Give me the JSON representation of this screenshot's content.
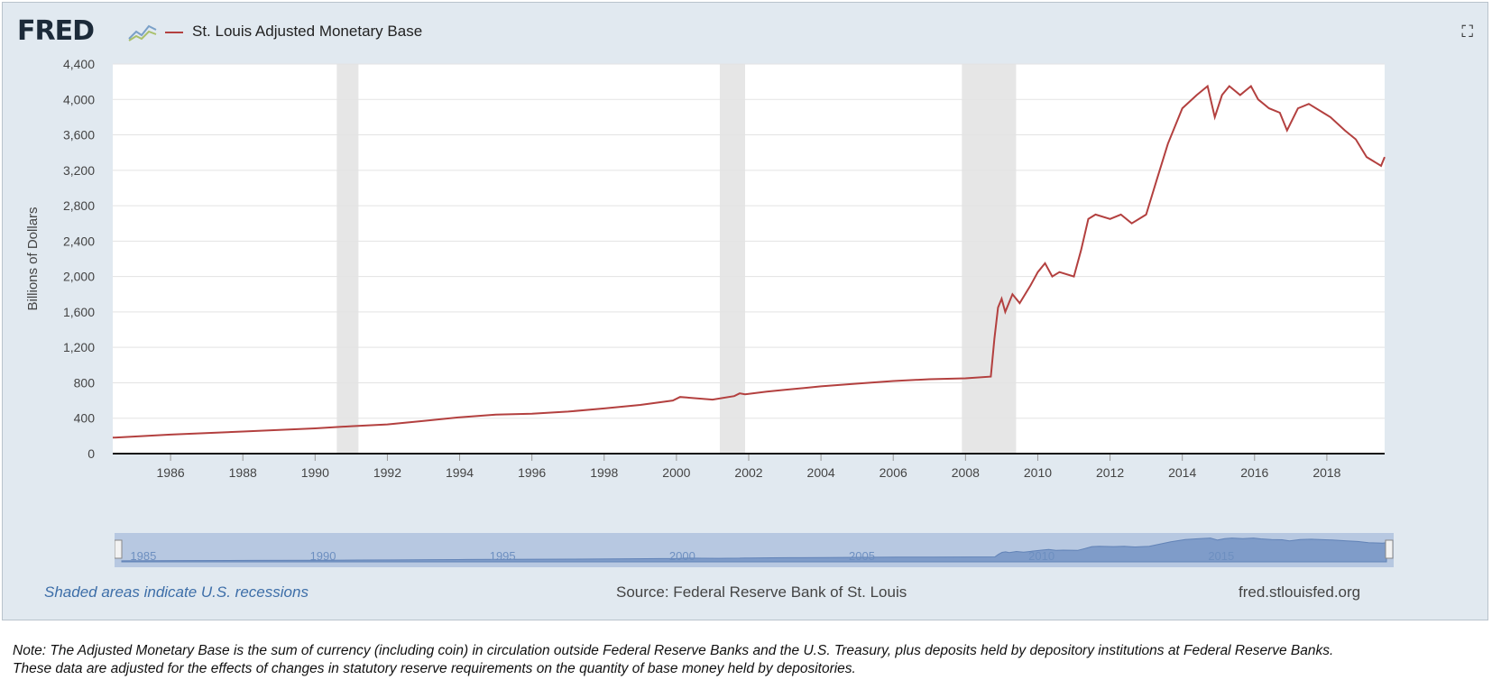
{
  "header": {
    "logo_text": "FRED",
    "logo_icon": "chart-line-icon",
    "legend_label": "St. Louis Adjusted Monetary Base",
    "fullscreen_icon": "fullscreen-icon"
  },
  "footer": {
    "recession_note": "Shaded areas indicate U.S. recessions",
    "source": "Source: Federal Reserve Bank of St. Louis",
    "site": "fred.stlouisfed.org"
  },
  "note": {
    "line1": "Note: The Adjusted Monetary Base is the sum of currency (including coin) in circulation outside Federal Reserve Banks and the U.S. Treasury, plus deposits held by depository institutions at Federal Reserve Banks.",
    "line2": "These data are adjusted for the effects of changes in statutory reserve requirements on the quantity of base money held by depositories."
  },
  "colors": {
    "series": "#b3403f",
    "recession": "#e6e6e6",
    "background": "#e1e9f0",
    "navigator": "#b7c8e1",
    "navigator_fill": "#7f9cc9"
  },
  "chart_data": {
    "type": "line",
    "title": "",
    "xlabel": "",
    "ylabel": "Billions of Dollars",
    "xlim": [
      1984.4,
      2019.6
    ],
    "ylim": [
      0,
      4400
    ],
    "y_ticks": [
      "0",
      "400",
      "800",
      "1,200",
      "1,600",
      "2,000",
      "2,400",
      "2,800",
      "3,200",
      "3,600",
      "4,000",
      "4,400"
    ],
    "x_ticks": [
      "1986",
      "1988",
      "1990",
      "1992",
      "1994",
      "1996",
      "1998",
      "2000",
      "2002",
      "2004",
      "2006",
      "2008",
      "2010",
      "2012",
      "2014",
      "2016",
      "2018"
    ],
    "grid": true,
    "recessions": [
      [
        1990.6,
        1991.2
      ],
      [
        2001.2,
        2001.9
      ],
      [
        2007.9,
        2009.4
      ]
    ],
    "navigator_ticks": [
      "1985",
      "1990",
      "1995",
      "2000",
      "2005",
      "2010",
      "2015"
    ],
    "series": [
      {
        "name": "St. Louis Adjusted Monetary Base",
        "x": [
          1984.4,
          1986.0,
          1988.0,
          1990.0,
          1991.0,
          1992.0,
          1993.0,
          1994.0,
          1995.0,
          1996.0,
          1997.0,
          1998.0,
          1999.0,
          1999.9,
          2000.1,
          2001.0,
          2001.6,
          2001.75,
          2001.9,
          2002.5,
          2003.0,
          2004.0,
          2005.0,
          2006.0,
          2007.0,
          2008.0,
          2008.7,
          2008.8,
          2008.9,
          2009.0,
          2009.1,
          2009.3,
          2009.5,
          2009.8,
          2010.0,
          2010.2,
          2010.4,
          2010.6,
          2011.0,
          2011.2,
          2011.4,
          2011.6,
          2012.0,
          2012.3,
          2012.6,
          2013.0,
          2013.3,
          2013.6,
          2014.0,
          2014.4,
          2014.7,
          2014.9,
          2015.1,
          2015.3,
          2015.6,
          2015.9,
          2016.1,
          2016.4,
          2016.7,
          2016.9,
          2017.2,
          2017.5,
          2017.9,
          2018.1,
          2018.5,
          2018.8,
          2019.1,
          2019.3,
          2019.5,
          2019.6
        ],
        "y": [
          180,
          215,
          250,
          285,
          310,
          330,
          370,
          410,
          440,
          450,
          475,
          510,
          550,
          600,
          640,
          610,
          650,
          680,
          670,
          700,
          720,
          760,
          790,
          820,
          840,
          850,
          870,
          1300,
          1650,
          1750,
          1600,
          1800,
          1700,
          1900,
          2050,
          2150,
          2000,
          2050,
          2000,
          2300,
          2650,
          2700,
          2650,
          2700,
          2600,
          2700,
          3100,
          3500,
          3900,
          4050,
          4150,
          3800,
          4050,
          4150,
          4050,
          4150,
          4000,
          3900,
          3850,
          3650,
          3900,
          3950,
          3850,
          3800,
          3650,
          3550,
          3350,
          3300,
          3250,
          3350
        ]
      }
    ]
  }
}
